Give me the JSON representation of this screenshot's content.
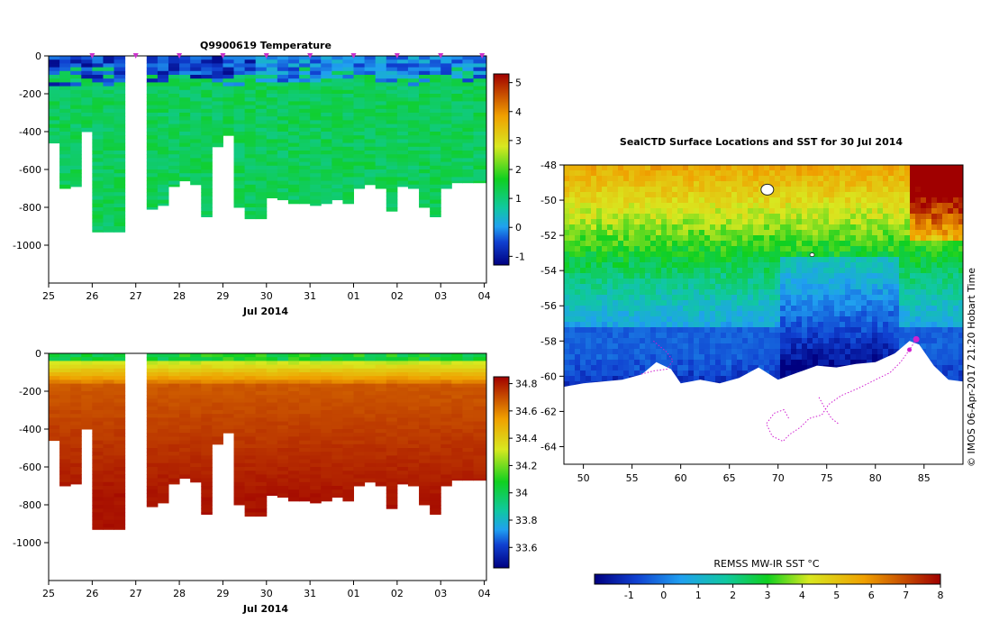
{
  "chart_data": [
    {
      "type": "heatmap",
      "title": "Q9900619  Temperature",
      "xlabel": "Jul 2014",
      "x_ticks": [
        "25",
        "26",
        "27",
        "28",
        "29",
        "30",
        "31",
        "01",
        "02",
        "03",
        "04"
      ],
      "y_ticks": [
        0,
        -200,
        -400,
        -600,
        -800,
        -1000
      ],
      "ylim": [
        -1200,
        0
      ],
      "colorbar_ticks": [
        5,
        4,
        3,
        2,
        1,
        0,
        -1
      ],
      "colorbar_range": [
        -1.3,
        5.3
      ],
      "profile_times": [
        25.0,
        25.25,
        25.5,
        25.75,
        26.0,
        26.25,
        26.5,
        27.25,
        27.5,
        27.75,
        28.0,
        28.25,
        28.5,
        28.75,
        29.0,
        29.25,
        29.5,
        29.75,
        30.0,
        30.25,
        30.5,
        30.75,
        31.0,
        31.25,
        31.5,
        31.75,
        32.0,
        32.25,
        32.5,
        32.75,
        33.0,
        33.25,
        33.5,
        33.75,
        34.0,
        34.25,
        34.5,
        34.75
      ],
      "profile_max_depth": [
        460,
        700,
        690,
        400,
        930,
        930,
        930,
        810,
        790,
        690,
        660,
        680,
        850,
        480,
        420,
        800,
        860,
        860,
        750,
        760,
        780,
        780,
        790,
        780,
        760,
        780,
        700,
        680,
        700,
        820,
        690,
        700,
        800,
        850,
        700,
        670,
        670,
        670
      ],
      "gap_days": [
        26.75,
        27.25
      ],
      "markers_days": [
        26.0,
        27.0,
        28.0,
        29.0,
        30.0,
        31.0,
        32.0,
        33.0,
        34.0,
        34.95
      ]
    },
    {
      "type": "heatmap",
      "title": "",
      "xlabel": "Jul 2014",
      "x_ticks": [
        "25",
        "26",
        "27",
        "28",
        "29",
        "30",
        "31",
        "01",
        "02",
        "03",
        "04"
      ],
      "y_ticks": [
        0,
        -200,
        -400,
        -600,
        -800,
        -1000
      ],
      "ylim": [
        -1200,
        0
      ],
      "colorbar_ticks": [
        34.8,
        34.6,
        34.4,
        34.2,
        34,
        33.8,
        33.6
      ],
      "colorbar_range": [
        33.45,
        34.85
      ]
    },
    {
      "type": "heatmap",
      "title": "SealCTD Surface Locations and SST for 30 Jul 2014",
      "x_ticks": [
        50,
        55,
        60,
        65,
        70,
        75,
        80,
        85
      ],
      "y_ticks": [
        -48,
        -50,
        -52,
        -54,
        -56,
        -58,
        -60,
        -62,
        -64
      ],
      "xlim": [
        48,
        89
      ],
      "ylim": [
        -65,
        -48
      ],
      "colorbar_label": "REMSS MW-IR SST °C",
      "colorbar_ticks": [
        -1,
        0,
        1,
        2,
        3,
        4,
        5,
        6,
        7,
        8
      ],
      "colorbar_range": [
        -2,
        8
      ]
    }
  ],
  "annotation": "© IMOS 06-Apr-2017 21:20 Hobart Time",
  "colors": {
    "seal_track": "#d020d0",
    "marker": "#cc33cc"
  }
}
